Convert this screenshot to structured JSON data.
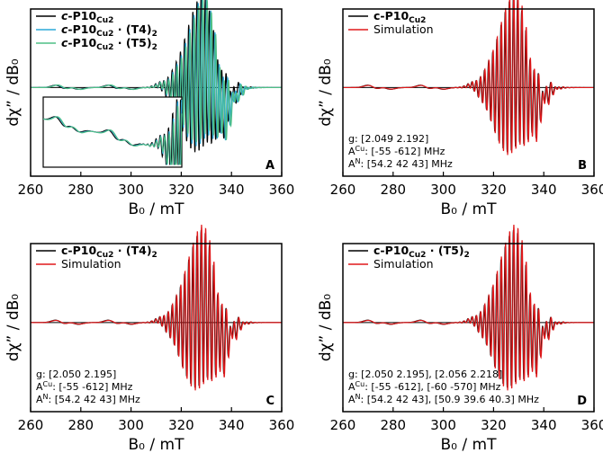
{
  "chart_data": [
    {
      "id": "A",
      "type": "line",
      "panel_label": "A",
      "xlabel": "B₀ / mT",
      "ylabel": "dχ” / dB₀",
      "xlim": [
        260,
        360
      ],
      "xticks": [
        260,
        280,
        300,
        320,
        340,
        360
      ],
      "legend_position": "top-left",
      "series": [
        {
          "name": "c-P10Cu2",
          "legend_parts": [
            [
              "c",
              "bi"
            ],
            [
              "-P10",
              "b"
            ],
            [
              "Cu2",
              "bsub"
            ]
          ],
          "color": "#000000"
        },
        {
          "name": "c-P10Cu2 · (T4)2",
          "legend_parts": [
            [
              "c",
              "bi"
            ],
            [
              "-P10",
              "b"
            ],
            [
              "Cu2",
              "bsub"
            ],
            [
              " · (T4)",
              "b"
            ],
            [
              "2",
              "bsub"
            ]
          ],
          "color": "#2ba9d8"
        },
        {
          "name": "c-P10Cu2 · (T5)2",
          "legend_parts": [
            [
              "c",
              "bi"
            ],
            [
              "-P10",
              "b"
            ],
            [
              "Cu2",
              "bsub"
            ],
            [
              " · (T5)",
              "b"
            ],
            [
              "2",
              "bsub"
            ]
          ],
          "color": "#4fbf86"
        }
      ],
      "inset": {
        "xlim": [
          265,
          320
        ],
        "description_series": [
          "c-P10Cu2",
          "c-P10Cu2 · (T4)2",
          "c-P10Cu2 · (T5)2"
        ]
      }
    },
    {
      "id": "B",
      "type": "line",
      "panel_label": "B",
      "xlabel": "B₀ / mT",
      "ylabel": "dχ” / dB₀",
      "xlim": [
        260,
        360
      ],
      "xticks": [
        260,
        280,
        300,
        320,
        340,
        360
      ],
      "legend_position": "top-left",
      "series": [
        {
          "name": "c-P10Cu2",
          "legend_parts": [
            [
              "c-P10",
              "b"
            ],
            [
              "Cu2",
              "bsub"
            ]
          ],
          "color": "#000000"
        },
        {
          "name": "Simulation",
          "legend_parts": [
            [
              "Simulation",
              "n"
            ]
          ],
          "color": "#e0191b"
        }
      ],
      "params": [
        [
          [
            "g:  [2.049 2.192]",
            "n"
          ]
        ],
        [
          [
            "A",
            "n"
          ],
          [
            "Cu",
            "sup"
          ],
          [
            ":  [-55 -612] MHz",
            "n"
          ]
        ],
        [
          [
            "A",
            "n"
          ],
          [
            "N",
            "sup"
          ],
          [
            ":  [54.2 42 43] MHz",
            "n"
          ]
        ]
      ]
    },
    {
      "id": "C",
      "type": "line",
      "panel_label": "C",
      "xlabel": "B₀ / mT",
      "ylabel": "dχ” / dB₀",
      "xlim": [
        260,
        360
      ],
      "xticks": [
        260,
        280,
        300,
        320,
        340,
        360
      ],
      "legend_position": "top-left",
      "series": [
        {
          "name": "c-P10Cu2 · (T4)2",
          "legend_parts": [
            [
              "c-P10",
              "b"
            ],
            [
              "Cu2",
              "bsub"
            ],
            [
              " · (T4)",
              "b"
            ],
            [
              "2",
              "bsub"
            ]
          ],
          "color": "#000000"
        },
        {
          "name": "Simulation",
          "legend_parts": [
            [
              "Simulation",
              "n"
            ]
          ],
          "color": "#e0191b"
        }
      ],
      "params": [
        [
          [
            "g:  [2.050 2.195]",
            "n"
          ]
        ],
        [
          [
            "A",
            "n"
          ],
          [
            "Cu",
            "sup"
          ],
          [
            ":  [-55 -612] MHz",
            "n"
          ]
        ],
        [
          [
            "A",
            "n"
          ],
          [
            "N",
            "sup"
          ],
          [
            ":  [54.2 42 43] MHz",
            "n"
          ]
        ]
      ]
    },
    {
      "id": "D",
      "type": "line",
      "panel_label": "D",
      "xlabel": "B₀ / mT",
      "ylabel": "dχ” / dB₀",
      "xlim": [
        260,
        360
      ],
      "xticks": [
        260,
        280,
        300,
        320,
        340,
        360
      ],
      "legend_position": "top-left",
      "series": [
        {
          "name": "c-P10Cu2 · (T5)2",
          "legend_parts": [
            [
              "c-P10",
              "b"
            ],
            [
              "Cu2",
              "bsub"
            ],
            [
              " · (T5)",
              "b"
            ],
            [
              "2",
              "bsub"
            ]
          ],
          "color": "#000000"
        },
        {
          "name": "Simulation",
          "legend_parts": [
            [
              "Simulation",
              "n"
            ]
          ],
          "color": "#e0191b"
        }
      ],
      "params": [
        [
          [
            "g:  [2.050 2.195],  [2.056 2.218]",
            "n"
          ]
        ],
        [
          [
            "A",
            "n"
          ],
          [
            "Cu",
            "sup"
          ],
          [
            ":  [-55 -612],  [-60 -570] MHz",
            "n"
          ]
        ],
        [
          [
            "A",
            "n"
          ],
          [
            "N",
            "sup"
          ],
          [
            ":  [54.2 42 43],  [50.9 39.6 40.3] MHz",
            "n"
          ]
        ]
      ]
    }
  ]
}
